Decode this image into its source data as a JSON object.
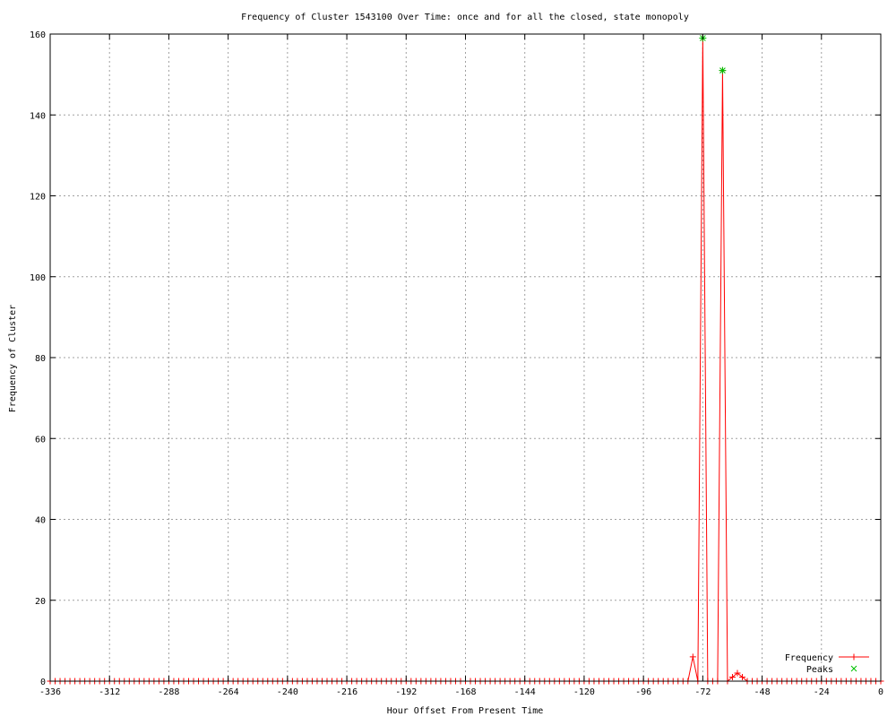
{
  "chart_data": {
    "type": "line",
    "title": "Frequency of Cluster 1543100 Over Time: once and for all the closed, state monopoly",
    "xlabel": "Hour Offset From Present Time",
    "ylabel": "Frequency of Cluster",
    "xlim": [
      -336,
      0
    ],
    "ylim": [
      0,
      160
    ],
    "xticks": [
      -336,
      -312,
      -288,
      -264,
      -240,
      -216,
      -192,
      -168,
      -144,
      -120,
      -96,
      -72,
      -48,
      -24,
      0
    ],
    "yticks": [
      0,
      20,
      40,
      60,
      80,
      100,
      120,
      140,
      160
    ],
    "grid": true,
    "legend_position": "bottom-right",
    "series": [
      {
        "name": "Frequency",
        "color": "#ff0000",
        "marker": "plus",
        "x": [
          -336,
          -334,
          -332,
          -330,
          -328,
          -326,
          -324,
          -322,
          -320,
          -318,
          -316,
          -314,
          -312,
          -310,
          -308,
          -306,
          -304,
          -302,
          -300,
          -298,
          -296,
          -294,
          -292,
          -290,
          -288,
          -286,
          -284,
          -282,
          -280,
          -278,
          -276,
          -274,
          -272,
          -270,
          -268,
          -266,
          -264,
          -262,
          -260,
          -258,
          -256,
          -254,
          -252,
          -250,
          -248,
          -246,
          -244,
          -242,
          -240,
          -238,
          -236,
          -234,
          -232,
          -230,
          -228,
          -226,
          -224,
          -222,
          -220,
          -218,
          -216,
          -214,
          -212,
          -210,
          -208,
          -206,
          -204,
          -202,
          -200,
          -198,
          -196,
          -194,
          -192,
          -190,
          -188,
          -186,
          -184,
          -182,
          -180,
          -178,
          -176,
          -174,
          -172,
          -170,
          -168,
          -166,
          -164,
          -162,
          -160,
          -158,
          -156,
          -154,
          -152,
          -150,
          -148,
          -146,
          -144,
          -142,
          -140,
          -138,
          -136,
          -134,
          -132,
          -130,
          -128,
          -126,
          -124,
          -122,
          -120,
          -118,
          -116,
          -114,
          -112,
          -110,
          -108,
          -106,
          -104,
          -102,
          -100,
          -98,
          -96,
          -94,
          -92,
          -90,
          -88,
          -86,
          -84,
          -82,
          -80,
          -78,
          -76,
          -74,
          -72,
          -70,
          -68,
          -66,
          -64,
          -62,
          -60,
          -58,
          -56,
          -54,
          -52,
          -50,
          -48,
          -46,
          -44,
          -42,
          -40,
          -38,
          -36,
          -34,
          -32,
          -30,
          -28,
          -26,
          -24,
          -22,
          -20,
          -18,
          -16,
          -14,
          -12,
          -10,
          -8,
          -6,
          -4,
          -2,
          0
        ],
        "y": [
          0,
          0,
          0,
          0,
          0,
          0,
          0,
          0,
          0,
          0,
          0,
          0,
          0,
          0,
          0,
          0,
          0,
          0,
          0,
          0,
          0,
          0,
          0,
          0,
          0,
          0,
          0,
          0,
          0,
          0,
          0,
          0,
          0,
          0,
          0,
          0,
          0,
          0,
          0,
          0,
          0,
          0,
          0,
          0,
          0,
          0,
          0,
          0,
          0,
          0,
          0,
          0,
          0,
          0,
          0,
          0,
          0,
          0,
          0,
          0,
          0,
          0,
          0,
          0,
          0,
          0,
          0,
          0,
          0,
          0,
          0,
          0,
          0,
          0,
          0,
          0,
          0,
          0,
          0,
          0,
          0,
          0,
          0,
          0,
          0,
          0,
          0,
          0,
          0,
          0,
          0,
          0,
          0,
          0,
          0,
          0,
          0,
          0,
          0,
          0,
          0,
          0,
          0,
          0,
          0,
          0,
          0,
          0,
          0,
          0,
          0,
          0,
          0,
          0,
          0,
          0,
          0,
          0,
          0,
          0,
          0,
          0,
          0,
          0,
          0,
          0,
          0,
          0,
          0,
          0,
          6,
          0,
          159,
          0,
          0,
          0,
          151,
          0,
          1,
          2,
          1,
          0,
          0,
          0,
          0,
          0,
          0,
          0,
          0,
          0,
          0,
          0,
          0,
          0,
          0,
          0,
          0,
          0,
          0,
          0,
          0,
          0,
          0,
          0,
          0,
          0,
          0,
          0,
          0
        ]
      },
      {
        "name": "Peaks",
        "color": "#00c000",
        "marker": "star",
        "x": [
          -72,
          -64
        ],
        "y": [
          159,
          151
        ]
      }
    ]
  }
}
